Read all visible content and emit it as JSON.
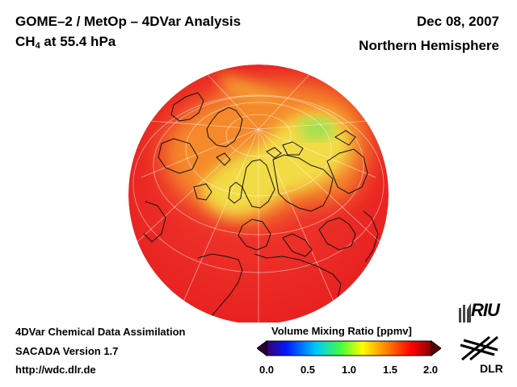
{
  "header": {
    "title": "GOME–2 / MetOp – 4DVar Analysis",
    "species_main": "CH",
    "species_sub": "4",
    "species_rest": " at 55.4 hPa",
    "date": "Dec 08, 2007",
    "hemisphere": "Northern Hemisphere"
  },
  "footer": {
    "line1": "4DVar Chemical Data Assimilation",
    "line2": "SACADA Version 1.7",
    "line3": "http://wdc.dlr.de"
  },
  "colorbar": {
    "title": "Volume Mixing Ratio [ppmv]",
    "ticks": [
      "0.0",
      "0.5",
      "1.0",
      "1.5",
      "2.0"
    ],
    "range": [
      0.0,
      2.0
    ],
    "colors": [
      "#3a006a",
      "#0018ff",
      "#00e0ff",
      "#40ff40",
      "#ffff00",
      "#ff8800",
      "#ff0000",
      "#880000"
    ]
  },
  "logos": {
    "riu": "RIU",
    "dlr": "DLR"
  },
  "map": {
    "projection": "orthographic, north pole",
    "colors": {
      "background": "#ef2a2a",
      "orange": "#f58a2a",
      "yellow": "#f0e040",
      "green": "#8ee050"
    }
  }
}
